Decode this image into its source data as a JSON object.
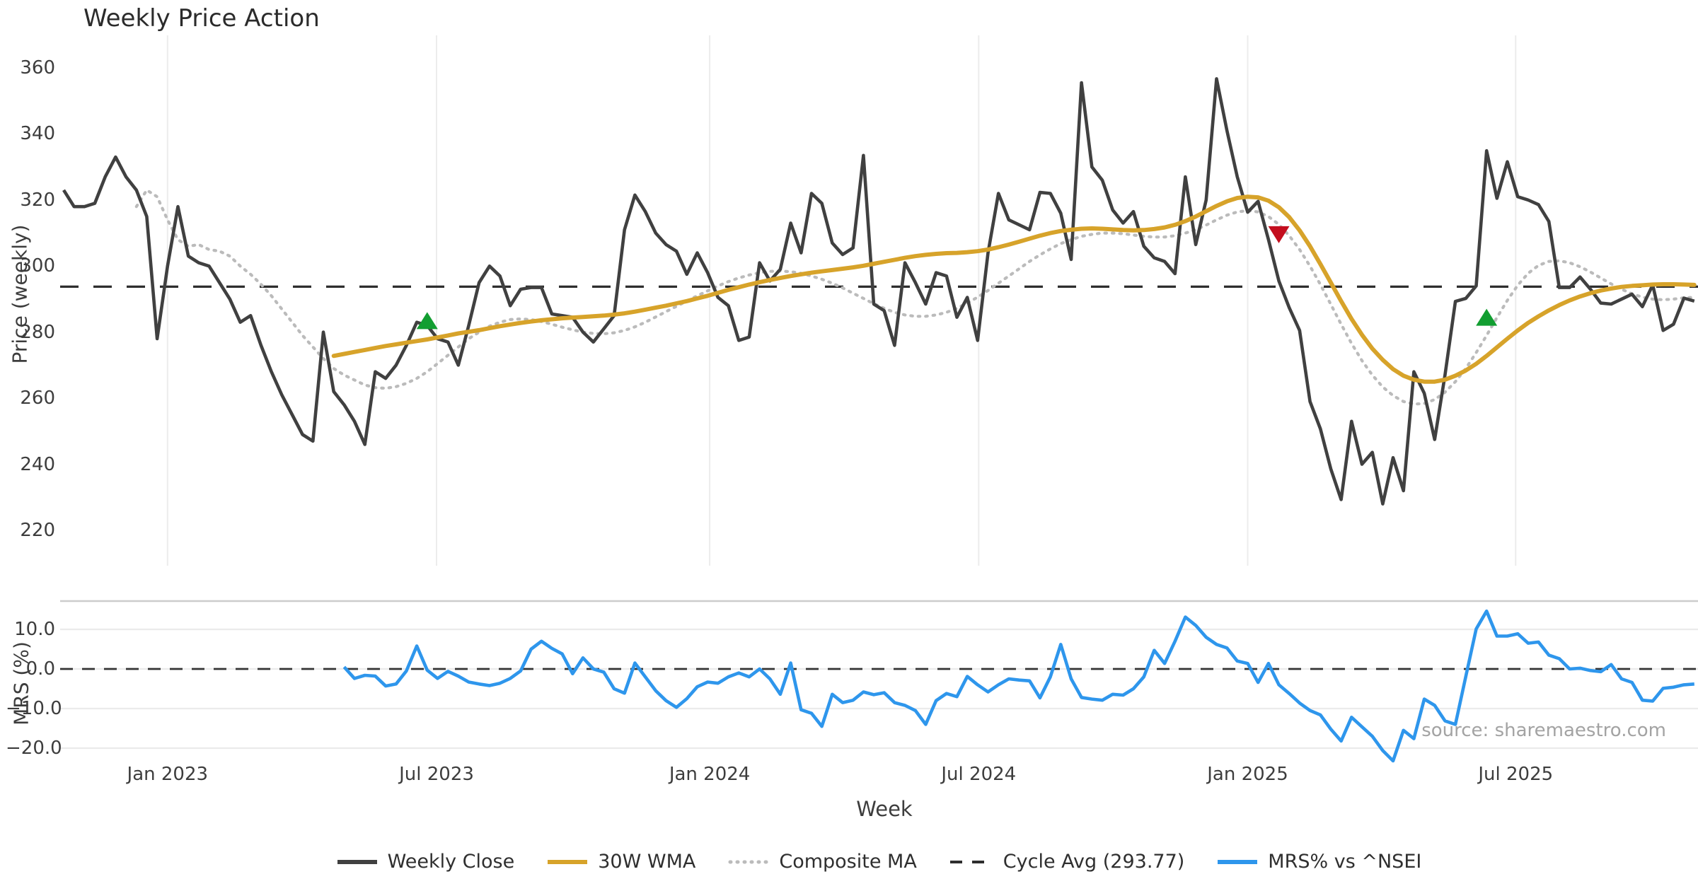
{
  "title": "Weekly Price Action",
  "source_note": "source: sharemaestro.com",
  "axes": {
    "price": {
      "label": "Price (weekly)",
      "yticks": [
        "360",
        "340",
        "320",
        "300",
        "280",
        "260",
        "240",
        "220"
      ],
      "ytick_values": [
        360,
        340,
        320,
        300,
        280,
        260,
        240,
        220
      ]
    },
    "mrs": {
      "label": "MRS (%)",
      "yticks": [
        "10.0",
        "0.0",
        "−10.0",
        "−20.0"
      ],
      "ytick_values": [
        10,
        0,
        -10,
        -20
      ]
    },
    "x": {
      "label": "Week",
      "ticks": [
        {
          "label": "Jan 2023",
          "i": 10.0
        },
        {
          "label": "Jul 2023",
          "i": 35.9
        },
        {
          "label": "Jan 2024",
          "i": 62.2
        },
        {
          "label": "Jul 2024",
          "i": 88.1
        },
        {
          "label": "Jan 2025",
          "i": 114.0
        },
        {
          "label": "Jul 2025",
          "i": 139.8
        }
      ]
    }
  },
  "legend": {
    "items": [
      {
        "key": "close",
        "label": "Weekly Close",
        "style": "solid"
      },
      {
        "key": "wma",
        "label": "30W WMA",
        "style": "solid"
      },
      {
        "key": "composite",
        "label": "Composite MA",
        "style": "dotted"
      },
      {
        "key": "cycle",
        "label": "Cycle Avg (293.77)",
        "style": "dashed"
      },
      {
        "key": "mrs",
        "label": "MRS% vs ^NSEI",
        "style": "solid"
      }
    ]
  },
  "colors": {
    "close": "#404040",
    "wma": "#d7a32a",
    "composite": "#bbbbbb",
    "cycle": "#2e2e2e",
    "mrs": "#2e96ec",
    "buy_marker": "#129e31",
    "sell_marker": "#c40e1e",
    "grid": "#ececec",
    "spine": "#cccccc",
    "zero_dash": "#333333"
  },
  "chart_data": {
    "type": "line",
    "x_unit": "week_index",
    "n_points": 158,
    "x_range_dates": [
      "Nov 2022",
      "Oct 2025"
    ],
    "panels": [
      {
        "name": "price",
        "ylabel": "Price (weekly)",
        "ylim": [
          212,
          368
        ],
        "grid": "vertical"
      },
      {
        "name": "mrs",
        "ylabel": "MRS (%)",
        "ylim": [
          -25,
          17
        ],
        "grid": "horizontal"
      }
    ],
    "cycle_avg": 293.77,
    "markers": [
      {
        "type": "buy",
        "shape": "triangle-up",
        "i": 35,
        "price": 283.5
      },
      {
        "type": "sell",
        "shape": "triangle-down",
        "i": 117,
        "price": 309.5
      },
      {
        "type": "buy",
        "shape": "triangle-up",
        "i": 137,
        "price": 284.5
      }
    ],
    "series": [
      {
        "name": "Weekly Close",
        "key": "close",
        "panel": "price",
        "values": [
          323,
          318,
          318,
          319,
          327,
          333,
          327,
          323,
          315,
          278,
          300,
          318,
          303,
          301,
          300,
          295,
          290,
          283,
          285,
          276,
          268,
          261,
          255,
          249,
          247,
          280,
          262,
          258,
          253,
          246,
          268,
          266,
          270,
          276,
          283,
          282,
          278,
          277,
          270,
          282,
          295,
          300,
          297,
          288,
          293,
          293.5,
          293.5,
          285.5,
          285,
          284.5,
          280,
          277,
          281,
          285,
          311,
          321.5,
          316.5,
          310,
          306.5,
          304.5,
          297.5,
          304,
          298,
          290.5,
          288,
          277.5,
          278.5,
          301,
          295.5,
          299,
          313,
          304,
          322,
          319,
          307,
          303.5,
          305.5,
          333.5,
          288.5,
          286.5,
          276,
          301,
          295,
          288.5,
          298,
          297,
          284.5,
          290.5,
          277.5,
          304,
          322,
          314,
          312.5,
          311,
          322.3,
          322,
          316,
          302,
          355.5,
          330,
          326,
          317,
          313,
          316.5,
          306,
          302.5,
          301.4,
          297.7,
          327,
          306.5,
          320,
          356.7,
          341,
          327,
          316.3,
          319.6,
          308,
          295.5,
          287.4,
          280.5,
          259,
          250.7,
          238.6,
          229.3,
          253,
          240,
          243.6,
          228,
          242,
          232,
          268,
          261.5,
          247.5,
          267,
          289.3,
          290.2,
          294,
          334.9,
          320.5,
          331.6,
          321,
          320,
          318.6,
          313.5,
          293.5,
          293.5,
          296.7,
          293,
          288.8,
          288.5,
          290,
          291.5,
          287.7,
          294.3,
          280.5,
          282.4,
          290.3,
          289.4
        ]
      },
      {
        "name": "30W WMA",
        "key": "wma",
        "panel": "price",
        "values": [
          null,
          null,
          null,
          null,
          null,
          null,
          null,
          null,
          null,
          null,
          null,
          null,
          null,
          null,
          null,
          null,
          null,
          null,
          null,
          null,
          null,
          null,
          null,
          null,
          null,
          null,
          272.8,
          273.4,
          274,
          274.6,
          275.2,
          275.8,
          276.3,
          276.8,
          277.3,
          277.8,
          278.4,
          279,
          279.6,
          280.1,
          280.6,
          281.2,
          281.8,
          282.3,
          282.8,
          283.2,
          283.6,
          283.9,
          284.2,
          284.4,
          284.6,
          284.8,
          285,
          285.3,
          285.7,
          286.2,
          286.8,
          287.4,
          288,
          288.7,
          289.4,
          290.2,
          291,
          291.9,
          292.8,
          293.6,
          294.4,
          295.1,
          295.8,
          296.4,
          297,
          297.5,
          298,
          298.4,
          298.8,
          299.2,
          299.6,
          300.1,
          300.7,
          301.3,
          301.9,
          302.5,
          303,
          303.4,
          303.7,
          303.9,
          304,
          304.2,
          304.5,
          305,
          305.7,
          306.5,
          307.4,
          308.3,
          309.2,
          310,
          310.6,
          311,
          311.3,
          311.4,
          311.3,
          311.1,
          310.9,
          310.8,
          310.9,
          311.2,
          311.7,
          312.5,
          313.6,
          315,
          316.6,
          318.2,
          319.6,
          320.6,
          321,
          320.8,
          319.8,
          317.8,
          314.8,
          310.8,
          306,
          300.6,
          295,
          289.4,
          284,
          279.2,
          275,
          271.6,
          268.8,
          266.8,
          265.6,
          265,
          265,
          265.6,
          266.8,
          268.4,
          270.4,
          272.8,
          275.4,
          278,
          280.5,
          282.8,
          284.8,
          286.6,
          288.2,
          289.6,
          290.8,
          291.8,
          292.6,
          293.2,
          293.7,
          294,
          294.2,
          294.4,
          294.5,
          294.5,
          294.4,
          294.3
        ]
      },
      {
        "name": "Composite MA",
        "key": "composite",
        "panel": "price",
        "values": [
          null,
          null,
          null,
          null,
          null,
          null,
          null,
          318,
          323,
          321,
          314,
          308,
          306,
          306.5,
          305,
          304.5,
          303,
          300,
          297.5,
          294.5,
          291,
          287,
          283,
          279,
          275.5,
          272,
          269,
          267,
          265.5,
          264,
          263.2,
          263,
          263.5,
          264.5,
          266,
          268,
          270.5,
          273,
          275.5,
          278,
          280,
          281.8,
          283,
          283.8,
          284,
          283.8,
          283.2,
          282.4,
          281.5,
          280.7,
          280,
          279.6,
          279.5,
          279.8,
          280.5,
          281.6,
          283,
          284.6,
          286.2,
          287.8,
          289.4,
          291,
          292.5,
          294,
          295.3,
          296.4,
          297.3,
          298,
          298.4,
          298.5,
          298.3,
          297.8,
          297,
          296,
          294.8,
          293.4,
          291.8,
          290.2,
          288.6,
          287.2,
          286,
          285.2,
          284.8,
          284.8,
          285.2,
          286,
          287.2,
          288.8,
          290.6,
          292.6,
          294.8,
          297,
          299.2,
          301.4,
          303.4,
          305.2,
          306.8,
          308,
          309,
          309.6,
          310,
          310,
          309.8,
          309.4,
          309,
          308.8,
          308.8,
          309.2,
          310,
          311,
          312.4,
          314,
          315.4,
          316.4,
          316.8,
          316.4,
          315,
          312.6,
          309.2,
          305,
          300,
          294.4,
          288.4,
          282.4,
          276.6,
          271.4,
          267,
          263.4,
          260.8,
          259,
          258.2,
          258.4,
          259.6,
          261.8,
          265,
          269,
          273.8,
          279,
          284.4,
          289.6,
          294.2,
          297.8,
          300.2,
          301.4,
          301.6,
          301,
          299.8,
          298.2,
          296.4,
          294.6,
          293,
          291.6,
          290.6,
          290,
          289.8,
          290,
          290.4,
          290.5
        ]
      },
      {
        "name": "MRS% vs ^NSEI",
        "key": "mrs",
        "panel": "mrs",
        "values": [
          null,
          null,
          null,
          null,
          null,
          null,
          null,
          null,
          null,
          null,
          null,
          null,
          null,
          null,
          null,
          null,
          null,
          null,
          null,
          null,
          null,
          null,
          null,
          null,
          null,
          null,
          null,
          0.5,
          -2.4,
          -1.6,
          -1.8,
          -4.3,
          -3.8,
          -0.5,
          5.8,
          -0.3,
          -2.4,
          -0.6,
          -1.8,
          -3.3,
          -3.8,
          -4.2,
          -3.6,
          -2.4,
          -0.5,
          5.0,
          7.0,
          5.2,
          3.8,
          -1.2,
          2.8,
          0.0,
          -0.8,
          -5.0,
          -6.1,
          1.5,
          -2.0,
          -5.5,
          -8.0,
          -9.7,
          -7.5,
          -4.5,
          -3.3,
          -3.6,
          -2.0,
          -1.0,
          -2.0,
          0.0,
          -2.5,
          -6.4,
          1.5,
          -10.3,
          -11.2,
          -14.5,
          -6.4,
          -8.5,
          -7.9,
          -5.8,
          -6.5,
          -6.0,
          -8.5,
          -9.2,
          -10.5,
          -14.0,
          -8.0,
          -6.2,
          -7.0,
          -1.9,
          -4.0,
          -5.8,
          -4.0,
          -2.5,
          -2.8,
          -3.0,
          -7.3,
          -2.0,
          6.2,
          -2.5,
          -7.2,
          -7.6,
          -7.9,
          -6.4,
          -6.6,
          -5.0,
          -2.0,
          4.7,
          1.4,
          7.0,
          13.1,
          11.0,
          8.0,
          6.2,
          5.3,
          2.0,
          1.4,
          -3.4,
          1.4,
          -4.0,
          -6.2,
          -8.6,
          -10.5,
          -11.6,
          -15.2,
          -18.2,
          -12.2,
          -14.6,
          -17.0,
          -20.6,
          -23.6,
          -15.5,
          -17.6,
          -7.6,
          -9.2,
          -13.1,
          -14.0,
          -1.9,
          10.1,
          14.6,
          8.3,
          8.3,
          8.9,
          6.5,
          6.8,
          3.5,
          2.6,
          0.0,
          0.2,
          -0.4,
          -0.7,
          1.1,
          -2.5,
          -3.4,
          -7.9,
          -8.1,
          -4.9,
          -4.6,
          -4.0,
          -3.8
        ]
      }
    ]
  }
}
